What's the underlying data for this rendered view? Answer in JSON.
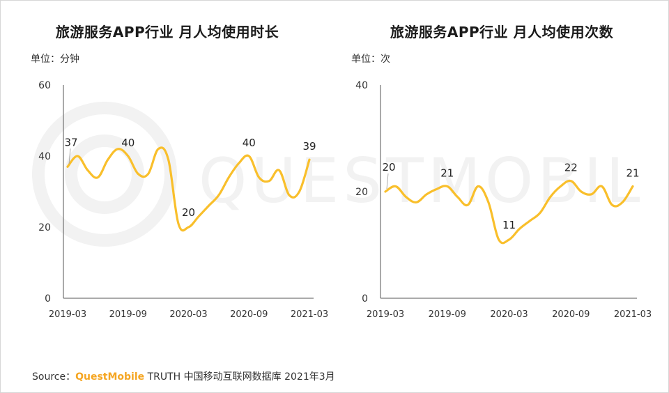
{
  "source": {
    "prefix": "Source：",
    "brand": "QuestMobile",
    "rest": " TRUTH 中国移动互联网数据库 2021年3月"
  },
  "watermark_text": "QUESTMOBILE",
  "colors": {
    "line": "#f9bf2b",
    "axis": "#555555",
    "text": "#333333",
    "watermark": "#f2f2f2"
  },
  "chart_data": [
    {
      "type": "line",
      "title": "旅游服务APP行业 月人均使用时长",
      "unit": "单位：分钟",
      "ylim": [
        0,
        60
      ],
      "yticks": [
        0,
        20,
        40,
        60
      ],
      "xticks": [
        "2019-03",
        "2019-09",
        "2020-03",
        "2020-09",
        "2021-03"
      ],
      "x": [
        "2019-03",
        "2019-04",
        "2019-05",
        "2019-06",
        "2019-07",
        "2019-08",
        "2019-09",
        "2019-10",
        "2019-11",
        "2019-12",
        "2020-01",
        "2020-02",
        "2020-03",
        "2020-04",
        "2020-05",
        "2020-06",
        "2020-07",
        "2020-08",
        "2020-09",
        "2020-10",
        "2020-11",
        "2020-12",
        "2021-01",
        "2021-02",
        "2021-03"
      ],
      "values": [
        37,
        40,
        36,
        34,
        39,
        42,
        40,
        35,
        35,
        42,
        39,
        21,
        20,
        23,
        26,
        29,
        34,
        38,
        40,
        34,
        33,
        36,
        29,
        30,
        39
      ],
      "data_labels": [
        {
          "index": 0,
          "text": "37"
        },
        {
          "index": 6,
          "text": "40"
        },
        {
          "index": 12,
          "text": "20"
        },
        {
          "index": 18,
          "text": "40"
        },
        {
          "index": 24,
          "text": "39"
        }
      ],
      "grid": false
    },
    {
      "type": "line",
      "title": "旅游服务APP行业 月人均使用次数",
      "unit": "单位：次",
      "ylim": [
        0,
        40
      ],
      "yticks": [
        0,
        20,
        40
      ],
      "xticks": [
        "2019-03",
        "2019-09",
        "2020-03",
        "2020-09",
        "2021-03"
      ],
      "x": [
        "2019-03",
        "2019-04",
        "2019-05",
        "2019-06",
        "2019-07",
        "2019-08",
        "2019-09",
        "2019-10",
        "2019-11",
        "2019-12",
        "2020-01",
        "2020-02",
        "2020-03",
        "2020-04",
        "2020-05",
        "2020-06",
        "2020-07",
        "2020-08",
        "2020-09",
        "2020-10",
        "2020-11",
        "2020-12",
        "2021-01",
        "2021-02",
        "2021-03"
      ],
      "values": [
        20,
        21,
        19,
        18,
        19.5,
        20.5,
        21,
        19,
        17.5,
        21,
        18,
        11,
        11,
        13,
        14.5,
        16,
        19,
        21,
        22,
        20,
        19.5,
        21,
        17.5,
        18,
        21
      ],
      "data_labels": [
        {
          "index": 0,
          "text": "20"
        },
        {
          "index": 6,
          "text": "21"
        },
        {
          "index": 12,
          "text": "11"
        },
        {
          "index": 18,
          "text": "22"
        },
        {
          "index": 24,
          "text": "21"
        }
      ],
      "grid": false
    }
  ]
}
